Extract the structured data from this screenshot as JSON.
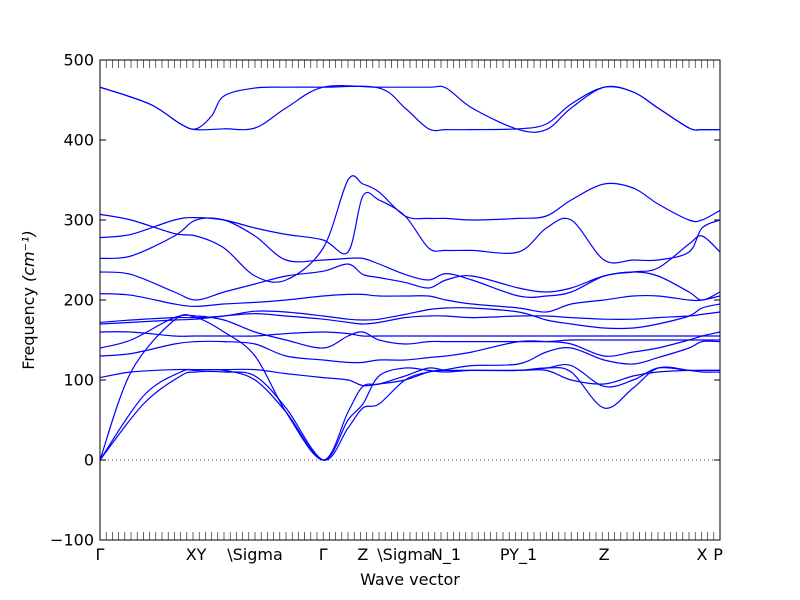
{
  "chart_data": {
    "type": "line",
    "xlabel": "Wave vector",
    "ylabel": "Frequency",
    "ylabel_unit": "(cm⁻¹)",
    "ylim": [
      -100,
      500
    ],
    "yticks": [
      -100,
      0,
      100,
      200,
      300,
      400,
      500
    ],
    "xlim": [
      0,
      1
    ],
    "xticks": [
      {
        "pos": 0.0,
        "label": "Γ"
      },
      {
        "pos": 0.155,
        "label": "XY"
      },
      {
        "pos": 0.25,
        "label": "\\Sigma"
      },
      {
        "pos": 0.36,
        "label": "Γ"
      },
      {
        "pos": 0.424,
        "label": "Z"
      },
      {
        "pos": 0.492,
        "label": "\\Sigma"
      },
      {
        "pos": 0.558,
        "label": "N_1"
      },
      {
        "pos": 0.675,
        "label": "PY_1"
      },
      {
        "pos": 0.813,
        "label": "Z"
      },
      {
        "pos": 0.971,
        "label": "X"
      },
      {
        "pos": 0.997,
        "label": "P"
      }
    ],
    "zero_line": true,
    "grid": false,
    "legend": "none",
    "series_color": "#0000ff",
    "series": [
      {
        "x": [
          0,
          0.07,
          0.13,
          0.155,
          0.2,
          0.25,
          0.3,
          0.36,
          0.4,
          0.424,
          0.45,
          0.492,
          0.53,
          0.558,
          0.6,
          0.675,
          0.72,
          0.76,
          0.813,
          0.86,
          0.9,
          0.95,
          0.971,
          1.0
        ],
        "values": [
          0,
          70,
          105,
          110,
          110,
          105,
          65,
          0,
          40,
          65,
          70,
          100,
          110,
          112,
          112,
          112,
          112,
          100,
          95,
          105,
          110,
          112,
          112,
          112
        ]
      },
      {
        "x": [
          0,
          0.07,
          0.13,
          0.155,
          0.2,
          0.25,
          0.3,
          0.36,
          0.4,
          0.424,
          0.45,
          0.492,
          0.53,
          0.558,
          0.6,
          0.675,
          0.72,
          0.76,
          0.813,
          0.86,
          0.9,
          0.95,
          0.971,
          1.0
        ],
        "values": [
          0,
          80,
          110,
          112,
          112,
          100,
          60,
          0,
          50,
          70,
          105,
          115,
          112,
          110,
          112,
          112,
          115,
          110,
          65,
          90,
          115,
          112,
          110,
          110
        ]
      },
      {
        "x": [
          0,
          0.05,
          0.12,
          0.155,
          0.2,
          0.25,
          0.3,
          0.36,
          0.4,
          0.424,
          0.45,
          0.492,
          0.53,
          0.558,
          0.6,
          0.675,
          0.72,
          0.76,
          0.813,
          0.86,
          0.9,
          0.95,
          0.971,
          1.0
        ],
        "values": [
          0,
          110,
          175,
          178,
          160,
          130,
          60,
          0,
          60,
          92,
          95,
          105,
          115,
          112,
          112,
          112,
          115,
          118,
          92,
          100,
          115,
          112,
          112,
          112
        ]
      },
      {
        "x": [
          0,
          0.05,
          0.12,
          0.155,
          0.2,
          0.25,
          0.3,
          0.36,
          0.4,
          0.424,
          0.45,
          0.492,
          0.53,
          0.558,
          0.6,
          0.675,
          0.72,
          0.76,
          0.813,
          0.86,
          0.9,
          0.95,
          0.971,
          1.0
        ],
        "values": [
          103,
          110,
          113,
          113,
          113,
          113,
          108,
          103,
          100,
          93,
          95,
          100,
          110,
          113,
          118,
          120,
          135,
          140,
          125,
          120,
          128,
          140,
          148,
          148
        ]
      },
      {
        "x": [
          0,
          0.05,
          0.12,
          0.155,
          0.2,
          0.25,
          0.3,
          0.36,
          0.4,
          0.424,
          0.45,
          0.492,
          0.53,
          0.558,
          0.6,
          0.675,
          0.72,
          0.76,
          0.813,
          0.86,
          0.9,
          0.95,
          0.971,
          1.0
        ],
        "values": [
          130,
          133,
          145,
          148,
          148,
          145,
          130,
          125,
          122,
          122,
          125,
          125,
          128,
          130,
          135,
          148,
          148,
          145,
          130,
          135,
          140,
          150,
          155,
          160
        ]
      },
      {
        "x": [
          0,
          0.05,
          0.12,
          0.155,
          0.2,
          0.25,
          0.3,
          0.36,
          0.4,
          0.424,
          0.45,
          0.492,
          0.53,
          0.558,
          0.6,
          0.675,
          0.72,
          0.76,
          0.813,
          0.86,
          0.9,
          0.95,
          0.971,
          1.0
        ],
        "values": [
          140,
          150,
          178,
          180,
          175,
          160,
          150,
          140,
          155,
          160,
          150,
          145,
          148,
          148,
          148,
          148,
          148,
          150,
          150,
          150,
          150,
          150,
          150,
          150
        ]
      },
      {
        "x": [
          0,
          0.05,
          0.12,
          0.155,
          0.2,
          0.25,
          0.3,
          0.36,
          0.4,
          0.424,
          0.45,
          0.492,
          0.53,
          0.558,
          0.6,
          0.675,
          0.72,
          0.76,
          0.813,
          0.86,
          0.9,
          0.95,
          0.971,
          1.0
        ],
        "values": [
          160,
          160,
          155,
          155,
          155,
          155,
          158,
          160,
          158,
          155,
          155,
          155,
          155,
          155,
          155,
          155,
          155,
          155,
          155,
          155,
          155,
          155,
          155,
          155
        ]
      },
      {
        "x": [
          0,
          0.05,
          0.12,
          0.155,
          0.2,
          0.25,
          0.3,
          0.36,
          0.4,
          0.424,
          0.45,
          0.492,
          0.53,
          0.558,
          0.6,
          0.675,
          0.72,
          0.76,
          0.813,
          0.86,
          0.9,
          0.95,
          0.971,
          1.0
        ],
        "values": [
          170,
          172,
          175,
          176,
          180,
          183,
          180,
          176,
          172,
          170,
          172,
          178,
          180,
          180,
          178,
          180,
          180,
          178,
          176,
          176,
          178,
          180,
          182,
          185
        ]
      },
      {
        "x": [
          0,
          0.05,
          0.12,
          0.155,
          0.2,
          0.25,
          0.3,
          0.36,
          0.4,
          0.424,
          0.45,
          0.492,
          0.53,
          0.558,
          0.6,
          0.675,
          0.72,
          0.76,
          0.813,
          0.86,
          0.9,
          0.95,
          0.971,
          1.0
        ],
        "values": [
          172,
          175,
          178,
          178,
          180,
          186,
          185,
          180,
          176,
          175,
          176,
          182,
          188,
          190,
          190,
          185,
          175,
          170,
          165,
          165,
          170,
          180,
          190,
          195
        ]
      },
      {
        "x": [
          0,
          0.05,
          0.12,
          0.155,
          0.2,
          0.25,
          0.3,
          0.36,
          0.4,
          0.424,
          0.45,
          0.492,
          0.53,
          0.558,
          0.6,
          0.675,
          0.72,
          0.76,
          0.813,
          0.86,
          0.9,
          0.95,
          0.971,
          1.0
        ],
        "values": [
          208,
          206,
          195,
          192,
          195,
          197,
          200,
          205,
          207,
          207,
          205,
          205,
          205,
          200,
          195,
          190,
          185,
          195,
          200,
          205,
          205,
          200,
          200,
          205
        ]
      },
      {
        "x": [
          0,
          0.05,
          0.12,
          0.155,
          0.2,
          0.25,
          0.3,
          0.36,
          0.4,
          0.424,
          0.45,
          0.492,
          0.53,
          0.558,
          0.6,
          0.675,
          0.72,
          0.76,
          0.813,
          0.86,
          0.9,
          0.95,
          0.971,
          1.0
        ],
        "values": [
          235,
          232,
          210,
          200,
          210,
          220,
          230,
          236,
          245,
          232,
          228,
          222,
          215,
          225,
          230,
          215,
          210,
          215,
          230,
          235,
          230,
          210,
          200,
          210
        ]
      },
      {
        "x": [
          0,
          0.05,
          0.12,
          0.155,
          0.2,
          0.25,
          0.3,
          0.36,
          0.4,
          0.424,
          0.45,
          0.492,
          0.53,
          0.558,
          0.6,
          0.675,
          0.72,
          0.76,
          0.813,
          0.86,
          0.9,
          0.95,
          0.971,
          1.0
        ],
        "values": [
          252,
          255,
          280,
          300,
          300,
          280,
          250,
          250,
          252,
          252,
          245,
          232,
          225,
          233,
          225,
          205,
          205,
          210,
          230,
          235,
          240,
          270,
          280,
          260
        ]
      },
      {
        "x": [
          0,
          0.05,
          0.12,
          0.155,
          0.2,
          0.25,
          0.3,
          0.36,
          0.4,
          0.424,
          0.45,
          0.492,
          0.53,
          0.558,
          0.6,
          0.675,
          0.72,
          0.76,
          0.813,
          0.86,
          0.9,
          0.95,
          0.971,
          1.0
        ],
        "values": [
          278,
          282,
          300,
          303,
          300,
          290,
          282,
          275,
          260,
          330,
          325,
          305,
          265,
          262,
          262,
          260,
          290,
          300,
          250,
          250,
          250,
          260,
          290,
          300
        ]
      },
      {
        "x": [
          0,
          0.05,
          0.12,
          0.155,
          0.2,
          0.25,
          0.3,
          0.36,
          0.4,
          0.424,
          0.45,
          0.492,
          0.53,
          0.558,
          0.6,
          0.675,
          0.72,
          0.76,
          0.813,
          0.86,
          0.9,
          0.95,
          0.971,
          1.0
        ],
        "values": [
          307,
          300,
          283,
          280,
          265,
          230,
          225,
          265,
          350,
          345,
          335,
          305,
          302,
          302,
          300,
          302,
          305,
          325,
          345,
          340,
          320,
          300,
          300,
          312
        ]
      },
      {
        "x": [
          0,
          0.08,
          0.13,
          0.155,
          0.2,
          0.25,
          0.3,
          0.36,
          0.45,
          0.53,
          0.558,
          0.6,
          0.675,
          0.72,
          0.76,
          0.813,
          0.86,
          0.9,
          0.95,
          0.971,
          1.0
        ],
        "values": [
          466,
          445,
          420,
          413,
          414,
          415,
          440,
          466,
          466,
          466,
          465,
          440,
          413,
          413,
          440,
          466,
          460,
          440,
          415,
          413,
          413
        ]
      },
      {
        "x": [
          0,
          0.08,
          0.13,
          0.155,
          0.18,
          0.2,
          0.25,
          0.3,
          0.36,
          0.45,
          0.492,
          0.53,
          0.558,
          0.6,
          0.675,
          0.72,
          0.76,
          0.813,
          0.86,
          0.9,
          0.95,
          0.971,
          1.0
        ],
        "values": [
          466,
          445,
          420,
          414,
          430,
          455,
          465,
          466,
          466,
          465,
          440,
          414,
          413,
          413,
          414,
          420,
          445,
          466,
          460,
          440,
          415,
          413,
          413
        ]
      }
    ]
  }
}
